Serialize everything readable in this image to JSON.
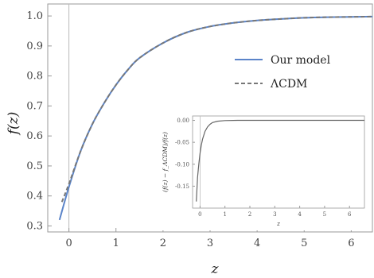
{
  "chart_data": [
    {
      "type": "line",
      "xlabel": "z",
      "ylabel": "f(z)",
      "xlim": [
        -0.45,
        6.45
      ],
      "ylim": [
        0.28,
        1.04
      ],
      "xticks": [
        0,
        1,
        2,
        3,
        4,
        5,
        6
      ],
      "yticks": [
        0.3,
        0.4,
        0.5,
        0.6,
        0.7,
        0.8,
        0.9,
        1.0
      ],
      "ytick_labels": [
        "0.3",
        "0.4",
        "0.5",
        "0.6",
        "0.7",
        "0.8",
        "0.9",
        "1.0"
      ],
      "legend_position": "right",
      "series": [
        {
          "name": "Our model",
          "style": "solid",
          "color": "#5b84c9",
          "x": [
            -0.2,
            0,
            0.25,
            0.5,
            0.75,
            1,
            1.25,
            1.5,
            2,
            2.5,
            3,
            3.5,
            4,
            4.5,
            5,
            5.5,
            6,
            6.45
          ],
          "y": [
            0.32,
            0.43,
            0.55,
            0.64,
            0.71,
            0.77,
            0.82,
            0.86,
            0.91,
            0.945,
            0.965,
            0.977,
            0.985,
            0.99,
            0.994,
            0.996,
            0.997,
            0.998
          ]
        },
        {
          "name": "ΛCDM",
          "style": "dashed",
          "color": "#777777",
          "x": [
            -0.15,
            0,
            0.25,
            0.5,
            0.75,
            1,
            1.25,
            1.5,
            2,
            2.5,
            3,
            3.5,
            4,
            4.5,
            5,
            5.5,
            6,
            6.45
          ],
          "y": [
            0.38,
            0.44,
            0.55,
            0.64,
            0.71,
            0.77,
            0.82,
            0.86,
            0.91,
            0.945,
            0.965,
            0.977,
            0.985,
            0.99,
            0.994,
            0.996,
            0.997,
            0.998
          ]
        }
      ]
    },
    {
      "type": "line",
      "xlabel": "z",
      "ylabel": "(f(z) − f_ΛCDM)/f(z)",
      "xlim": [
        -0.3,
        6.6
      ],
      "ylim": [
        -0.2,
        0.01
      ],
      "xticks": [
        0,
        1,
        2,
        3,
        4,
        5,
        6
      ],
      "yticks": [
        0.0,
        -0.05,
        -0.1,
        -0.15
      ],
      "ytick_labels": [
        "0.00",
        "-0.05",
        "-0.10",
        "-0.15"
      ],
      "series": [
        {
          "color": "#666666",
          "x": [
            -0.15,
            -0.1,
            -0.05,
            0,
            0.05,
            0.1,
            0.2,
            0.3,
            0.4,
            0.5,
            0.7,
            1,
            1.5,
            2,
            3,
            4,
            5,
            6,
            6.6
          ],
          "y": [
            -0.185,
            -0.13,
            -0.1,
            -0.075,
            -0.057,
            -0.043,
            -0.025,
            -0.015,
            -0.009,
            -0.005,
            -0.002,
            -0.0005,
            0,
            0,
            0,
            0,
            0,
            0,
            0
          ]
        }
      ]
    }
  ]
}
